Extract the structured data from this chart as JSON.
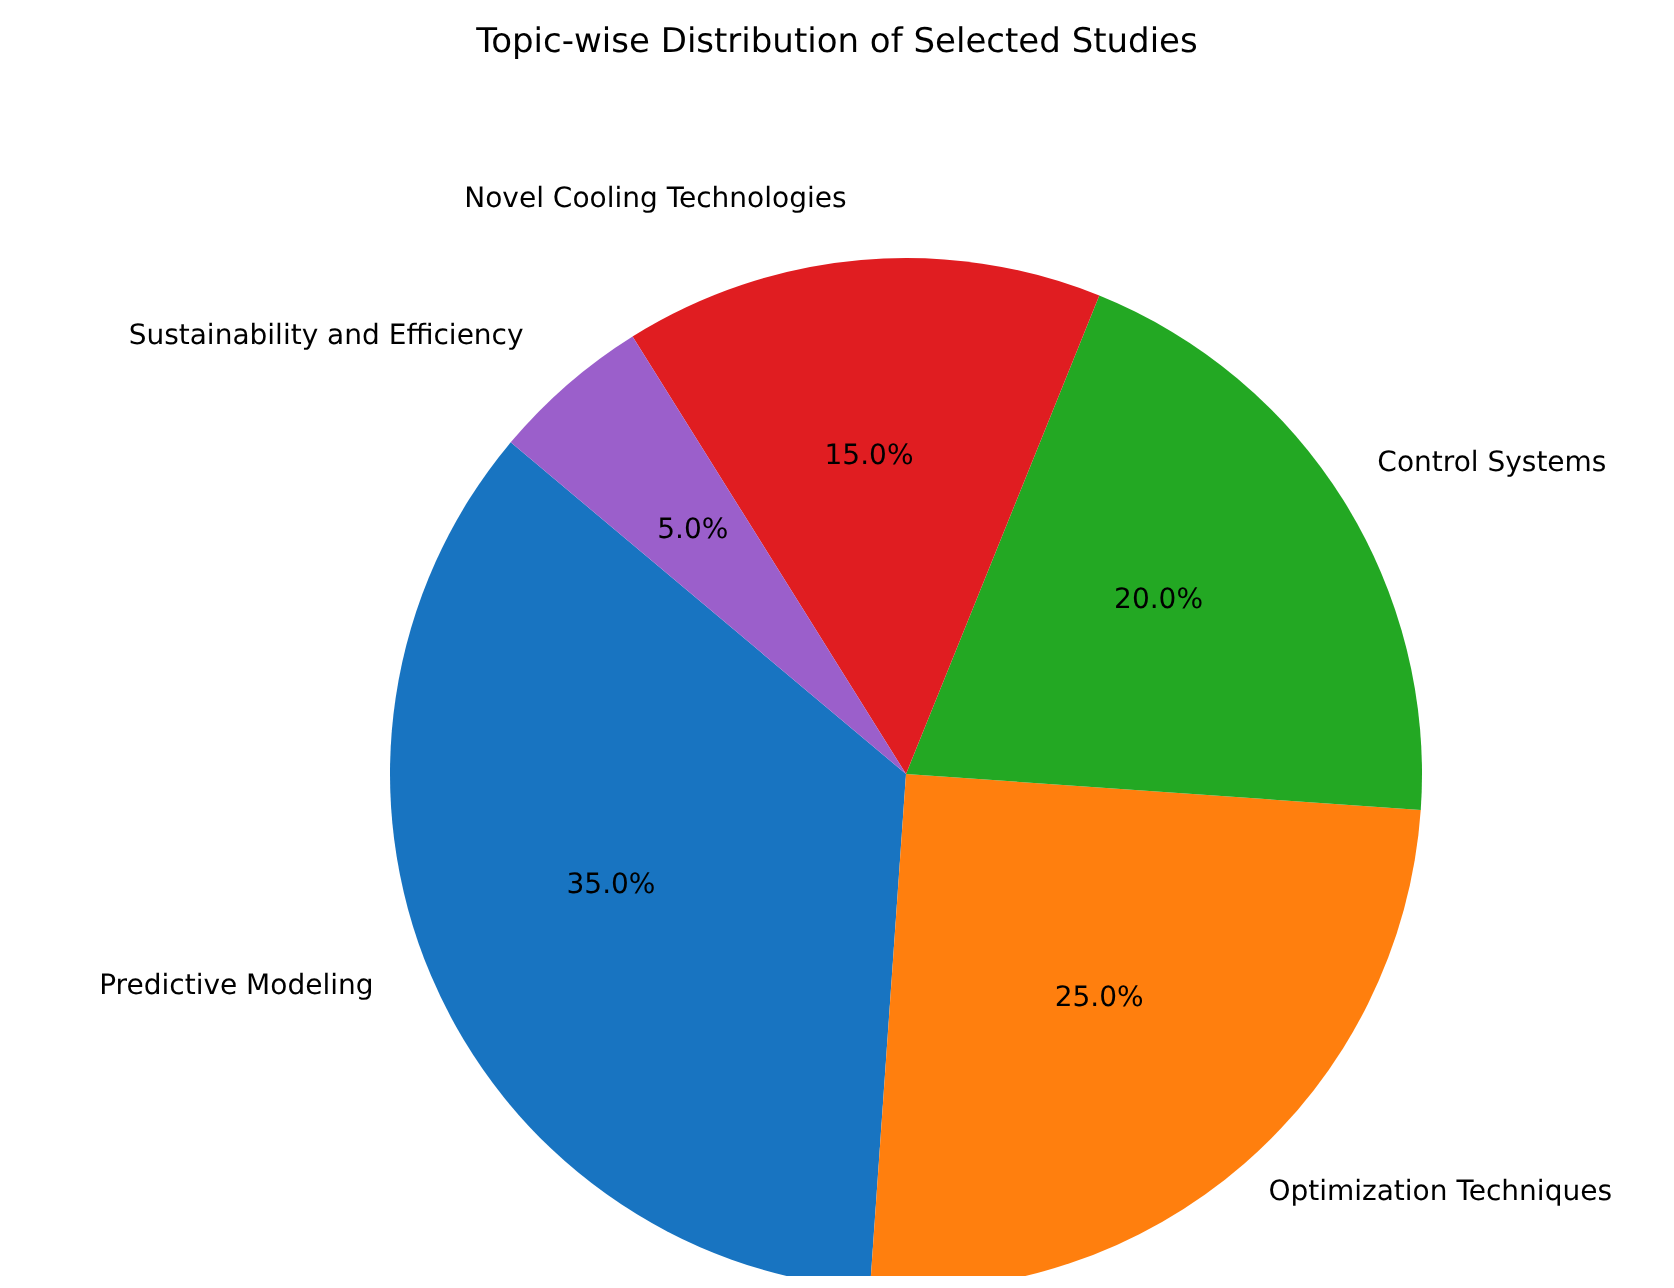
{
  "chart_data": {
    "type": "pie",
    "title": "Topic-wise Distribution of Selected Studies",
    "categories": [
      "Predictive Modeling",
      "Optimization Techniques",
      "Control Systems",
      "Novel Cooling Technologies",
      "Sustainability and Efficiency"
    ],
    "values": [
      35,
      25,
      20,
      15,
      5
    ],
    "value_labels": [
      "35.0%",
      "25.0%",
      "20.0%",
      "15.0%",
      "5.0%"
    ],
    "colors": [
      "#1874c1",
      "#ff7f0e",
      "#23a823",
      "#e01d21",
      "#9b5fcb"
    ],
    "legend": false
  }
}
